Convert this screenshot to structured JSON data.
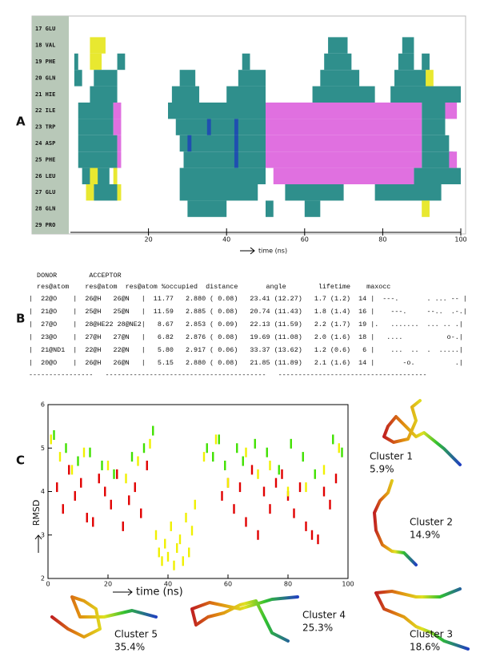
{
  "panel_labels": [
    "A",
    "B",
    "C"
  ],
  "chart_data": [
    {
      "type": "segments",
      "categories": [
        "17 GLU",
        "18 VAL",
        "19 PHE",
        "20 GLN",
        "21 HIE",
        "22 ILE",
        "23 TRP",
        "24 ASP",
        "25 PHE",
        "26 LEU",
        "27 GLU",
        "28 GLN",
        "29 PRO"
      ],
      "state_colors": [
        "#2f8f8c",
        "#e070e0",
        "#1f4fb0",
        "#e8e830"
      ],
      "segments": [
        [],
        [
          [
            66,
            71,
            0
          ],
          [
            85,
            88,
            0
          ],
          [
            5,
            9,
            3
          ]
        ],
        [
          [
            1,
            2,
            0
          ],
          [
            12,
            14,
            0
          ],
          [
            44,
            46,
            0
          ],
          [
            65,
            72,
            0
          ],
          [
            84,
            88,
            0
          ],
          [
            90,
            92,
            0
          ],
          [
            5,
            8,
            3
          ]
        ],
        [
          [
            1,
            3,
            0
          ],
          [
            6,
            12,
            0
          ],
          [
            28,
            32,
            0
          ],
          [
            43,
            50,
            0
          ],
          [
            64,
            74,
            0
          ],
          [
            83,
            92,
            0
          ],
          [
            91,
            93,
            3
          ]
        ],
        [
          [
            5,
            12,
            0
          ],
          [
            26,
            33,
            0
          ],
          [
            40,
            50,
            0
          ],
          [
            62,
            78,
            0
          ],
          [
            82,
            100,
            0
          ]
        ],
        [
          [
            2,
            11,
            0
          ],
          [
            25,
            50,
            0
          ],
          [
            90,
            96,
            0
          ],
          [
            11,
            13,
            1
          ],
          [
            50,
            90,
            1
          ],
          [
            96,
            99,
            1
          ]
        ],
        [
          [
            2,
            11,
            0
          ],
          [
            27,
            50,
            0
          ],
          [
            90,
            96,
            0
          ],
          [
            11,
            13,
            1
          ],
          [
            50,
            90,
            1
          ],
          [
            35,
            36,
            2
          ],
          [
            42,
            43,
            2
          ]
        ],
        [
          [
            2,
            12,
            0
          ],
          [
            28,
            50,
            0
          ],
          [
            90,
            97,
            0
          ],
          [
            12,
            13,
            1
          ],
          [
            50,
            90,
            1
          ],
          [
            30,
            31,
            2
          ],
          [
            42,
            43,
            2
          ]
        ],
        [
          [
            2,
            12,
            0
          ],
          [
            29,
            50,
            0
          ],
          [
            90,
            98,
            0
          ],
          [
            12,
            13,
            1
          ],
          [
            50,
            90,
            1
          ],
          [
            97,
            99,
            1
          ],
          [
            42,
            43,
            2
          ]
        ],
        [
          [
            3,
            10,
            0
          ],
          [
            28,
            50,
            0
          ],
          [
            88,
            100,
            0
          ],
          [
            52,
            88,
            1
          ],
          [
            5,
            7,
            3
          ],
          [
            11,
            12,
            3
          ]
        ],
        [
          [
            6,
            12,
            0
          ],
          [
            28,
            48,
            0
          ],
          [
            55,
            70,
            0
          ],
          [
            78,
            95,
            0
          ],
          [
            4,
            6,
            3
          ],
          [
            12,
            13,
            3
          ]
        ],
        [
          [
            30,
            40,
            0
          ],
          [
            50,
            52,
            0
          ],
          [
            60,
            64,
            0
          ],
          [
            90,
            92,
            3
          ]
        ],
        []
      ],
      "xlabel": "time (ns)",
      "xlim": [
        0,
        100
      ],
      "xticks": [
        20,
        40,
        60,
        80,
        100
      ]
    },
    {
      "type": "scatter",
      "xlabel": "time (ns)",
      "ylabel": "RMSD",
      "xlim": [
        0,
        100
      ],
      "xticks": [
        0,
        20,
        40,
        60,
        80,
        100
      ],
      "ylim": [
        2,
        6
      ],
      "yticks": [
        2,
        3,
        4,
        5,
        6
      ],
      "series": [
        {
          "color": "#e00000",
          "x": [
            3,
            5,
            7,
            9,
            11,
            13,
            15,
            17,
            19,
            21,
            23,
            25,
            27,
            29,
            31,
            33,
            58,
            60,
            62,
            64,
            66,
            68,
            70,
            72,
            74,
            76,
            78,
            80,
            82,
            84,
            86,
            88,
            90,
            92,
            94,
            96
          ],
          "values": [
            4.1,
            3.6,
            4.5,
            3.9,
            4.2,
            3.4,
            3.3,
            4.3,
            4.0,
            3.7,
            4.4,
            3.2,
            3.8,
            4.1,
            3.5,
            4.6,
            3.9,
            4.2,
            3.6,
            4.1,
            3.3,
            4.5,
            3.0,
            4.0,
            3.6,
            4.2,
            4.4,
            3.9,
            3.5,
            4.1,
            3.2,
            3.0,
            2.9,
            4.0,
            3.7,
            4.3
          ]
        },
        {
          "color": "#f0f000",
          "x": [
            1,
            4,
            8,
            12,
            20,
            26,
            30,
            34,
            36,
            37,
            38,
            39,
            40,
            41,
            42,
            43,
            44,
            45,
            46,
            47,
            48,
            49,
            52,
            56,
            60,
            66,
            70,
            74,
            80,
            86,
            92,
            97
          ],
          "values": [
            5.2,
            4.8,
            4.5,
            4.9,
            4.6,
            4.3,
            4.7,
            5.1,
            3.0,
            2.6,
            2.4,
            2.8,
            2.5,
            3.2,
            2.3,
            2.7,
            2.9,
            2.4,
            3.4,
            2.6,
            3.1,
            3.7,
            4.8,
            5.2,
            4.2,
            4.9,
            4.4,
            4.6,
            4.0,
            4.1,
            4.5,
            5.0
          ]
        },
        {
          "color": "#40e000",
          "x": [
            2,
            6,
            10,
            14,
            18,
            22,
            28,
            32,
            35,
            53,
            55,
            57,
            59,
            63,
            65,
            69,
            73,
            77,
            81,
            85,
            89,
            95,
            98
          ],
          "values": [
            5.3,
            5.0,
            4.7,
            4.9,
            4.6,
            4.4,
            4.8,
            5.0,
            5.4,
            5.0,
            4.8,
            5.2,
            4.6,
            5.0,
            4.7,
            5.1,
            4.9,
            4.5,
            5.1,
            4.8,
            4.4,
            5.2,
            4.9
          ]
        }
      ]
    }
  ],
  "table": {
    "header": [
      "  DONOR        ACCEPTOR",
      "  res@atom    res@atom  res@atom %occupied  distance       angle        lifetime    maxocc"
    ],
    "rows": [
      "|  22@O    |  26@H   26@N   |  11.77   2.880 ( 0.08)   23.41 (12.27)   1.7 (1.2)  14 |  ---.       . ... -- |",
      "|  21@O    |  25@H   25@N   |  11.59   2.885 ( 0.08)   20.74 (11.43)   1.8 (1.4)  16 |    ---.     --..  .-.|",
      "|  27@O    |  28@HE22 28@NE2|   8.67   2.853 ( 0.09)   22.13 (11.59)   2.2 (1.7)  19 |.   .......  ... .. .|",
      "|  23@O    |  27@H   27@N   |   6.82   2.876 ( 0.08)   19.69 (11.08)   2.0 (1.6)  18 |   ....           o-.|",
      "|  21@ND1  |  22@H   22@N   |   5.80   2.917 ( 0.06)   33.37 (13.62)   1.2 (0.6)   6 |    ...  ..  .  .....|",
      "|  20@O    |  26@H   26@N   |   5.15   2.880 ( 0.08)   21.85 (11.89)   2.1 (1.6)  14 |       -o.          .|"
    ],
    "footer": "----------------   ----------------------------------------   -------------------------------------"
  },
  "clusters": [
    {
      "name": "Cluster 1",
      "percent": "5.9%"
    },
    {
      "name": "Cluster 2",
      "percent": "14.9%"
    },
    {
      "name": "Cluster 3",
      "percent": "18.6%"
    },
    {
      "name": "Cluster 4",
      "percent": "25.3%"
    },
    {
      "name": "Cluster 5",
      "percent": "35.4%"
    }
  ]
}
